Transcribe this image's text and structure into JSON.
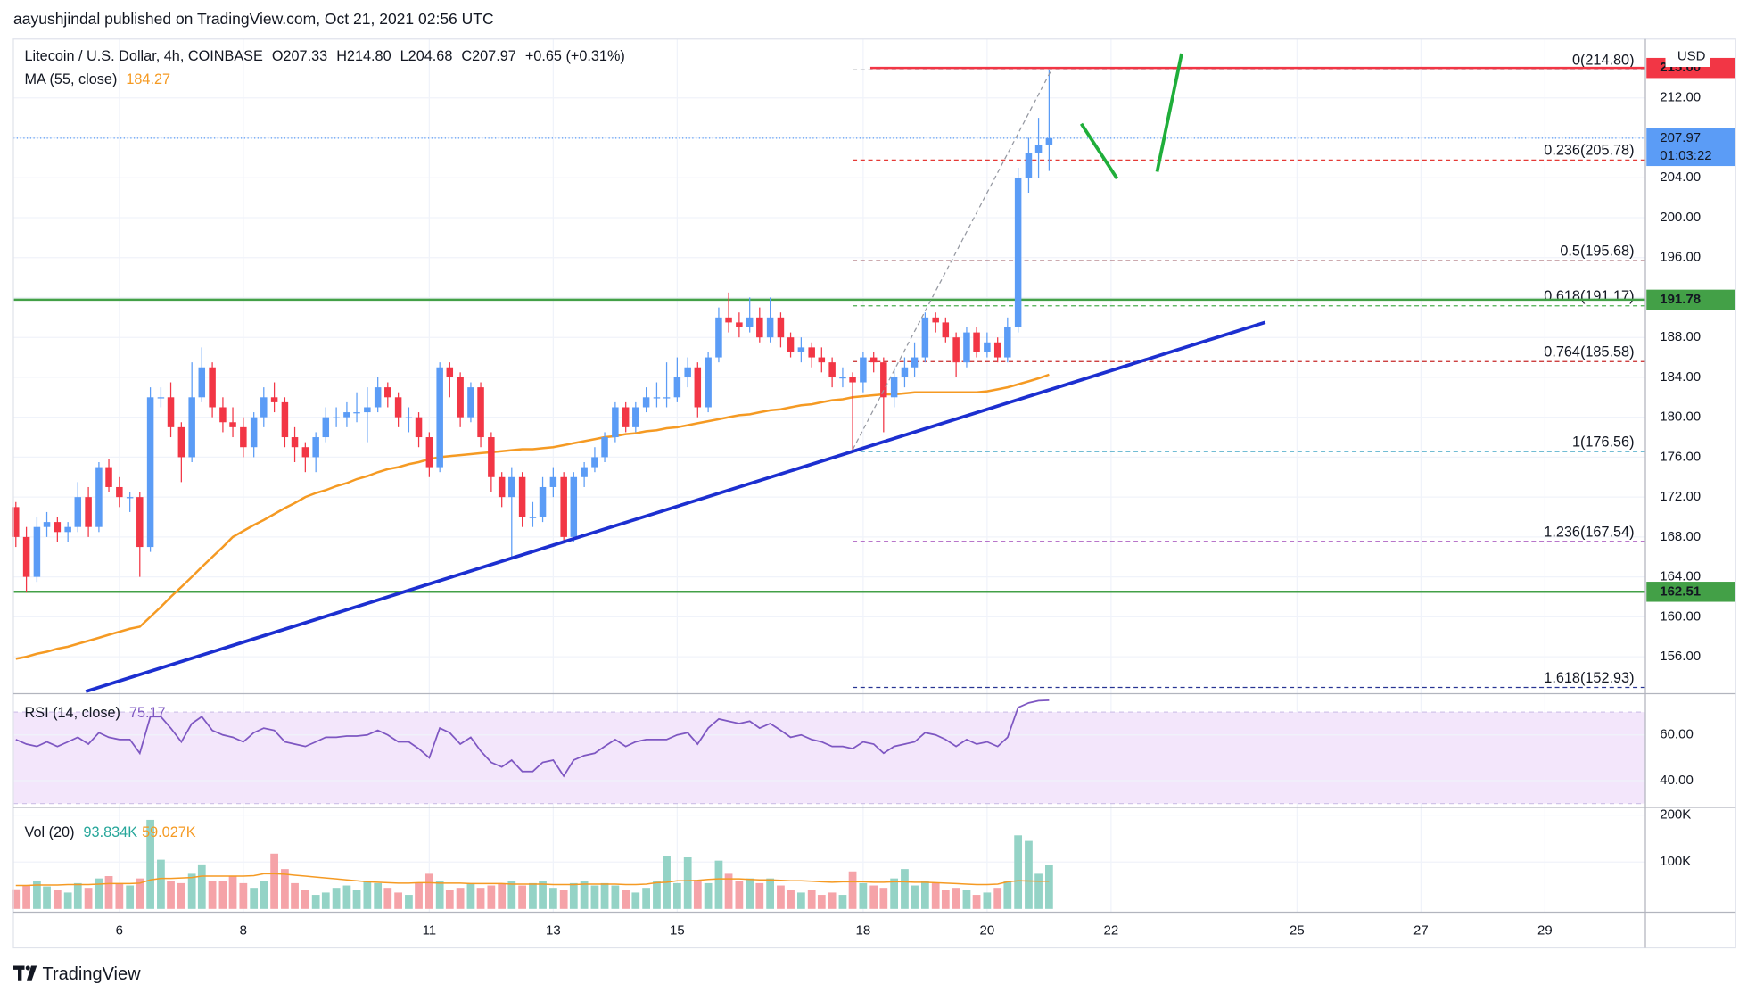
{
  "header": {
    "title": "aayushjindal published on TradingView.com, Oct 21, 2021 02:56 UTC",
    "symbol": "Litecoin / U.S. Dollar, 4h, COINBASE",
    "ohlc": [
      "O207.33",
      "H214.80",
      "L204.68",
      "C207.97",
      "+0.65 (+0.31%)"
    ]
  },
  "chart_data": {
    "type": "candlestick",
    "currency": "USD",
    "up_color": "#5b9cf6",
    "down_color": "#f23645",
    "grid": true,
    "xlim": [
      4.29,
      30.62
    ],
    "xticks": [
      6,
      8,
      11,
      13,
      15,
      18,
      20,
      22,
      25,
      27,
      29
    ],
    "ylim": [
      152.3,
      217.9
    ],
    "yticks": [
      {
        "value": 156,
        "label": "156.00"
      },
      {
        "value": 160,
        "label": "160.00"
      },
      {
        "value": 164,
        "label": "164.00"
      },
      {
        "value": 168,
        "label": "168.00"
      },
      {
        "value": 172,
        "label": "172.00"
      },
      {
        "value": 176,
        "label": "176.00"
      },
      {
        "value": 180,
        "label": "180.00"
      },
      {
        "value": 184,
        "label": "184.00"
      },
      {
        "value": 188,
        "label": "188.00"
      },
      {
        "value": 192,
        "label": "192.00"
      },
      {
        "value": 196,
        "label": "196.00"
      },
      {
        "value": 200,
        "label": "200.00"
      },
      {
        "value": 204,
        "label": "204.00"
      },
      {
        "value": 208,
        "label": "208.00"
      },
      {
        "value": 212,
        "label": "212.00"
      }
    ],
    "candles": [
      [
        4.33,
        171,
        171.5,
        167,
        168
      ],
      [
        4.5,
        168,
        169,
        162.5,
        164
      ],
      [
        4.67,
        164,
        170,
        163.5,
        169
      ],
      [
        4.83,
        169,
        170.5,
        168,
        169.5
      ],
      [
        5,
        169.5,
        170,
        167.5,
        168.5
      ],
      [
        5.17,
        168.5,
        169.5,
        167.5,
        169
      ],
      [
        5.33,
        169,
        173.5,
        168.5,
        172
      ],
      [
        5.5,
        172,
        173,
        168,
        169
      ],
      [
        5.67,
        169,
        175.5,
        168.5,
        175
      ],
      [
        5.83,
        175,
        175.8,
        172.5,
        173
      ],
      [
        6,
        173,
        174,
        171,
        172
      ],
      [
        6.17,
        172,
        172.5,
        170.5,
        172
      ],
      [
        6.33,
        172,
        172.5,
        164,
        167
      ],
      [
        6.5,
        167,
        183,
        166.5,
        182
      ],
      [
        6.67,
        182,
        183,
        181,
        182
      ],
      [
        6.83,
        182,
        183.5,
        178,
        179
      ],
      [
        7,
        179,
        179.5,
        173.5,
        176
      ],
      [
        7.17,
        176,
        185.5,
        175.5,
        182
      ],
      [
        7.33,
        182,
        187,
        181.5,
        185
      ],
      [
        7.5,
        185,
        185.5,
        180,
        181
      ],
      [
        7.67,
        181,
        182,
        178.5,
        179.5
      ],
      [
        7.83,
        179.5,
        181,
        178,
        179
      ],
      [
        8,
        179,
        180,
        176,
        177
      ],
      [
        8.17,
        177,
        180.5,
        176,
        180
      ],
      [
        8.33,
        180,
        183,
        179,
        182
      ],
      [
        8.5,
        182,
        183.5,
        180.5,
        181.5
      ],
      [
        8.67,
        181.5,
        182,
        177,
        178
      ],
      [
        8.83,
        178,
        179,
        175.5,
        177
      ],
      [
        9,
        177,
        177.5,
        174.5,
        176
      ],
      [
        9.17,
        176,
        178.5,
        174.5,
        178
      ],
      [
        9.33,
        178,
        181,
        177.5,
        180
      ],
      [
        9.5,
        180,
        181,
        179,
        180
      ],
      [
        9.67,
        180,
        181.5,
        179,
        180.5
      ],
      [
        9.83,
        180.5,
        182.5,
        179.5,
        180.5
      ],
      [
        10,
        180.5,
        183,
        177.5,
        181
      ],
      [
        10.17,
        181,
        184,
        180.5,
        183
      ],
      [
        10.33,
        183,
        183.5,
        181,
        182
      ],
      [
        10.5,
        182,
        182.5,
        179,
        180
      ],
      [
        10.67,
        180,
        181,
        178.5,
        180
      ],
      [
        10.83,
        180,
        180.5,
        177,
        178
      ],
      [
        11,
        178,
        178.5,
        174,
        175
      ],
      [
        11.17,
        175,
        185.5,
        174.5,
        185
      ],
      [
        11.33,
        185,
        185.5,
        182,
        184
      ],
      [
        11.5,
        184,
        184.5,
        179,
        180
      ],
      [
        11.67,
        180,
        183.5,
        179.5,
        183
      ],
      [
        11.83,
        183,
        183.5,
        177,
        178
      ],
      [
        12,
        178,
        178.5,
        172.5,
        174
      ],
      [
        12.17,
        174,
        174.5,
        171,
        172
      ],
      [
        12.33,
        172,
        175,
        166,
        174
      ],
      [
        12.5,
        174,
        174.5,
        169,
        170
      ],
      [
        12.67,
        170,
        171.5,
        169,
        170
      ],
      [
        12.83,
        170,
        174,
        169.5,
        173
      ],
      [
        13,
        173,
        175,
        172,
        174
      ],
      [
        13.17,
        174,
        174.5,
        167.5,
        168
      ],
      [
        13.33,
        168,
        174.5,
        167.5,
        174
      ],
      [
        13.5,
        174,
        175.5,
        173,
        175
      ],
      [
        13.67,
        175,
        177,
        174.5,
        176
      ],
      [
        13.83,
        176,
        178.5,
        175.5,
        178
      ],
      [
        14,
        178,
        181.5,
        177.5,
        181
      ],
      [
        14.17,
        181,
        181.5,
        178.5,
        179
      ],
      [
        14.33,
        179,
        181.5,
        178.5,
        181
      ],
      [
        14.5,
        181,
        183,
        180.5,
        182
      ],
      [
        14.67,
        182,
        183.5,
        181,
        182
      ],
      [
        14.83,
        182,
        185.5,
        181,
        182
      ],
      [
        15,
        182,
        186,
        181.5,
        184
      ],
      [
        15.17,
        184,
        186,
        183,
        185
      ],
      [
        15.33,
        185,
        185.5,
        180,
        181
      ],
      [
        15.5,
        181,
        186.5,
        180.5,
        186
      ],
      [
        15.67,
        186,
        191,
        185.5,
        190
      ],
      [
        15.83,
        190,
        192.5,
        188.5,
        189.5
      ],
      [
        16,
        189.5,
        190.5,
        188,
        189
      ],
      [
        16.17,
        189,
        192,
        188.5,
        190
      ],
      [
        16.33,
        190,
        191,
        187.5,
        188
      ],
      [
        16.5,
        188,
        192,
        187.5,
        190
      ],
      [
        16.67,
        190,
        190.5,
        187,
        188
      ],
      [
        16.83,
        188,
        188.5,
        186,
        186.5
      ],
      [
        17,
        186.5,
        188,
        185.5,
        187
      ],
      [
        17.17,
        187,
        187.5,
        185,
        186
      ],
      [
        17.33,
        186,
        187,
        184.5,
        185.5
      ],
      [
        17.5,
        185.5,
        186,
        183,
        184
      ],
      [
        17.67,
        184,
        185,
        183,
        184
      ],
      [
        17.83,
        184,
        184.5,
        176.56,
        183.5
      ],
      [
        18,
        183.5,
        186.5,
        182.5,
        186
      ],
      [
        18.17,
        186,
        186.5,
        184.5,
        185.5
      ],
      [
        18.33,
        185.5,
        186,
        178.5,
        182
      ],
      [
        18.5,
        182,
        185,
        181,
        184
      ],
      [
        18.67,
        184,
        186,
        183,
        185
      ],
      [
        18.83,
        185,
        187.5,
        184,
        186
      ],
      [
        19,
        186,
        190.5,
        185.5,
        190
      ],
      [
        19.17,
        190,
        190.5,
        188.5,
        189.5
      ],
      [
        19.33,
        189.5,
        190,
        187.5,
        188
      ],
      [
        19.5,
        188,
        188.5,
        184,
        185.5
      ],
      [
        19.67,
        185.5,
        189,
        185,
        188.5
      ],
      [
        19.83,
        188.5,
        189,
        186,
        186.5
      ],
      [
        20,
        186.5,
        188.5,
        186,
        187.5
      ],
      [
        20.17,
        187.5,
        188,
        185.5,
        186
      ],
      [
        20.33,
        186,
        190,
        185.5,
        189
      ],
      [
        20.5,
        189,
        205,
        188.5,
        204
      ],
      [
        20.67,
        204,
        208,
        202.5,
        206.5
      ],
      [
        20.83,
        206.5,
        210,
        204,
        207.3
      ],
      [
        21,
        207.33,
        214.8,
        204.68,
        207.97
      ]
    ],
    "ma": {
      "name": "MA (55, close)",
      "last": 184.27,
      "color": "#f59a23",
      "values": [
        155.8,
        156,
        156.3,
        156.5,
        156.8,
        157,
        157.3,
        157.6,
        157.9,
        158.2,
        158.5,
        158.8,
        159,
        160,
        161,
        162,
        163,
        164,
        165,
        166,
        167,
        168,
        168.6,
        169.2,
        169.7,
        170.3,
        170.9,
        171.4,
        172,
        172.4,
        172.7,
        173.1,
        173.4,
        173.8,
        174.1,
        174.5,
        174.8,
        175,
        175.3,
        175.5,
        175.8,
        176,
        176.1,
        176.2,
        176.3,
        176.4,
        176.5,
        176.6,
        176.7,
        176.8,
        176.8,
        176.9,
        177,
        177.2,
        177.4,
        177.6,
        177.8,
        178,
        178.1,
        178.3,
        178.4,
        178.6,
        178.7,
        178.9,
        179,
        179.2,
        179.4,
        179.6,
        179.8,
        180,
        180.2,
        180.3,
        180.5,
        180.7,
        180.8,
        181,
        181.2,
        181.3,
        181.5,
        181.7,
        181.8,
        182,
        182.1,
        182.2,
        182.3,
        182.3,
        182.4,
        182.5,
        182.5,
        182.5,
        182.5,
        182.5,
        182.5,
        182.5,
        182.6,
        182.8,
        183,
        183.3,
        183.6,
        183.9,
        184.27
      ]
    },
    "levels": [
      {
        "price": {
          "value": 215,
          "label": "215.00"
        },
        "color": "#f23645"
      },
      {
        "price": 191.78,
        "color": "#43a047"
      },
      {
        "price": 162.51,
        "color": "#43a047"
      }
    ],
    "fib": [
      {
        "label": "0(214.80)",
        "price": 214.8,
        "color": "#787b86"
      },
      {
        "label": "0.236(205.78)",
        "price": 205.78,
        "color": "#e53935"
      },
      {
        "label": "0.5(195.68)",
        "price": 195.68,
        "color": "#7a1f2b"
      },
      {
        "label": "0.618(191.17)",
        "price": 191.17,
        "color": "#4caf50"
      },
      {
        "label": "0.764(185.58)",
        "price": 185.58,
        "color": "#c62828"
      },
      {
        "label": "1(176.56)",
        "price": 176.56,
        "color": "#42a5c5"
      },
      {
        "label": "1.236(167.54)",
        "price": 167.54,
        "color": "#8e24aa"
      },
      {
        "label": "1.618(152.93)",
        "price": 152.93,
        "color": "#283593"
      }
    ],
    "last_price": {
      "value": 207.97,
      "countdown": "01:03:22",
      "color": "#5b9cf6"
    },
    "rsi": {
      "name": "RSI (14, close)",
      "last": 75.17,
      "color": "#7e57c2",
      "band": [
        30,
        70
      ],
      "ylim": [
        28.8,
        76.1
      ],
      "yticks": [
        {
          "value": 40,
          "label": "40.00"
        },
        {
          "value": 60,
          "label": "60.00"
        }
      ],
      "values": [
        58,
        56,
        55,
        57,
        55,
        57,
        59,
        56,
        61,
        59,
        58,
        58,
        52,
        68,
        68,
        63,
        57,
        65,
        68,
        62,
        60,
        59,
        57,
        61,
        63,
        62,
        57,
        56,
        55,
        57,
        59,
        59,
        59.5,
        59.5,
        60,
        62,
        60,
        57,
        57,
        54,
        50,
        63,
        61,
        56,
        59,
        53,
        48,
        46,
        49,
        44,
        44,
        48,
        49,
        42,
        49,
        51,
        52,
        55,
        58,
        55,
        57,
        58,
        58,
        58,
        60,
        61,
        56,
        63,
        67,
        66,
        65,
        66,
        63,
        65,
        62,
        59,
        60,
        58,
        57,
        55,
        55,
        54,
        57,
        56,
        52,
        55,
        56,
        57,
        61,
        60,
        58,
        55,
        58,
        56,
        57,
        55,
        59,
        72,
        74,
        75,
        75.17
      ]
    },
    "volume": {
      "name": "Vol (20)",
      "legend": [
        "93.834K",
        "59.027K"
      ],
      "up_color": "#94d3c6",
      "down_color": "#f5a3a8",
      "ma_color": "#f59a23",
      "ylim": [
        -7000,
        207000
      ],
      "yticks": [
        {
          "value": 100000,
          "label": "100K"
        },
        {
          "value": 200000,
          "label": "200K"
        }
      ],
      "values": [
        42000,
        50000,
        60000,
        48000,
        40000,
        35000,
        55000,
        45000,
        65000,
        70000,
        55000,
        50000,
        65000,
        190000,
        105000,
        60000,
        55000,
        75000,
        95000,
        60000,
        60000,
        70000,
        55000,
        45000,
        60000,
        118000,
        85000,
        55000,
        40000,
        30000,
        35000,
        45000,
        50000,
        40000,
        60000,
        55000,
        45000,
        35000,
        30000,
        55000,
        75000,
        60000,
        40000,
        45000,
        55000,
        45000,
        50000,
        55000,
        60000,
        50000,
        55000,
        60000,
        45000,
        40000,
        55000,
        60000,
        50000,
        55000,
        50000,
        40000,
        35000,
        45000,
        60000,
        113000,
        55000,
        110000,
        60000,
        55000,
        103000,
        75000,
        60000,
        65000,
        55000,
        65000,
        50000,
        40000,
        35000,
        40000,
        30000,
        35000,
        30000,
        80000,
        55000,
        50000,
        45000,
        65000,
        85000,
        50000,
        60000,
        55000,
        40000,
        45000,
        40000,
        30000,
        35000,
        45000,
        60000,
        157000,
        145000,
        75000,
        93834
      ],
      "ma": [
        50000,
        50000,
        51000,
        51000,
        51000,
        52000,
        52000,
        52000,
        53000,
        54000,
        54000,
        54000,
        55000,
        62000,
        65000,
        65000,
        66000,
        67000,
        70000,
        70000,
        70000,
        70000,
        70000,
        71000,
        75000,
        75000,
        74000,
        72000,
        70000,
        68000,
        66000,
        64000,
        62000,
        60000,
        58000,
        57000,
        56000,
        55000,
        55000,
        56000,
        56000,
        55000,
        55000,
        55000,
        54000,
        54000,
        54000,
        54000,
        53000,
        53000,
        53000,
        53000,
        52000,
        52000,
        52000,
        53000,
        53000,
        53000,
        53000,
        52000,
        52000,
        53000,
        56000,
        57000,
        60000,
        60000,
        61000,
        63000,
        64000,
        64000,
        64000,
        63000,
        62000,
        62000,
        61000,
        60000,
        60000,
        59000,
        58000,
        57000,
        58000,
        58000,
        58000,
        57000,
        57000,
        58000,
        58000,
        57000,
        57000,
        56000,
        55000,
        54000,
        53000,
        52000,
        52000,
        53000,
        58000,
        60000,
        59500,
        59000,
        59027
      ]
    }
  },
  "footer": {
    "brand": "TradingView"
  }
}
